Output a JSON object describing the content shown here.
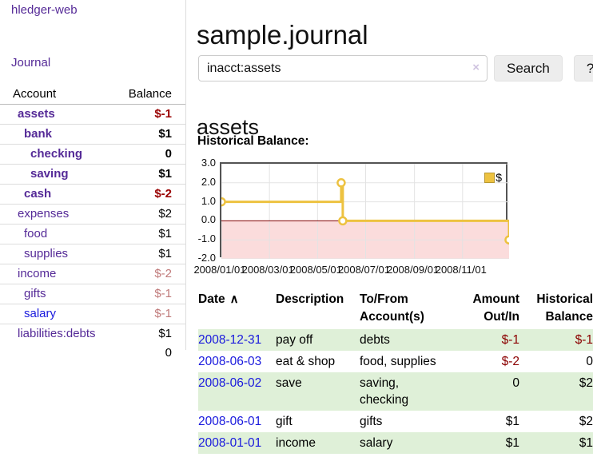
{
  "brand": "hledger-web",
  "nav": {
    "journal": "Journal"
  },
  "sidebar": {
    "headers": {
      "account": "Account",
      "balance": "Balance"
    },
    "rows": [
      {
        "account": "assets",
        "balance": "$-1",
        "depth": 1,
        "bold": true,
        "neg": "strong"
      },
      {
        "account": "bank",
        "balance": "$1",
        "depth": 2,
        "bold": true
      },
      {
        "account": "checking",
        "balance": "0",
        "depth": 3,
        "bold": true
      },
      {
        "account": "saving",
        "balance": "$1",
        "depth": 3,
        "bold": true
      },
      {
        "account": "cash",
        "balance": "$-2",
        "depth": 2,
        "bold": true,
        "neg": "strong"
      },
      {
        "account": "expenses",
        "balance": "$2",
        "depth": 1
      },
      {
        "account": "food",
        "balance": "$1",
        "depth": 2
      },
      {
        "account": "supplies",
        "balance": "$1",
        "depth": 2
      },
      {
        "account": "income",
        "balance": "$-2",
        "depth": 1,
        "neg": "muted"
      },
      {
        "account": "gifts",
        "balance": "$-1",
        "depth": 2,
        "neg": "muted"
      },
      {
        "account": "salary",
        "balance": "$-1",
        "depth": 2,
        "neg": "muted",
        "link": "blue"
      },
      {
        "account": "liabilities:debts",
        "balance": "$1",
        "depth": 1
      }
    ],
    "total": "0"
  },
  "header": {
    "title": "sample.journal"
  },
  "search": {
    "value": "inacct:assets",
    "clear_icon": "×",
    "button": "Search",
    "help_button": "?"
  },
  "account_page": {
    "heading": "assets",
    "chart_label": "Historical Balance:"
  },
  "chart_data": {
    "type": "line",
    "step": true,
    "title": "Historical Balance:",
    "x_unit": "days from 2008-01-01",
    "xlim": [
      0,
      365
    ],
    "ylim": [
      -2,
      3
    ],
    "yticks": [
      3.0,
      2.0,
      1.0,
      0.0,
      -1.0,
      -2.0
    ],
    "xticks": [
      {
        "x": 0,
        "label": "2008/01/01"
      },
      {
        "x": 61,
        "label": "2008/03/01"
      },
      {
        "x": 122,
        "label": "2008/05/01"
      },
      {
        "x": 183,
        "label": "2008/07/01"
      },
      {
        "x": 245,
        "label": "2008/09/01"
      },
      {
        "x": 306,
        "label": "2008/11/01"
      }
    ],
    "series": [
      {
        "name": "$",
        "color": "#edc240",
        "points": [
          {
            "date": "2008-01-01",
            "x": 0,
            "y": 1
          },
          {
            "date": "2008-06-01",
            "x": 152,
            "y": 2
          },
          {
            "date": "2008-06-03",
            "x": 154,
            "y": 0
          },
          {
            "date": "2008-12-31",
            "x": 365,
            "y": -1
          }
        ]
      }
    ],
    "legend": [
      {
        "label": "$",
        "color": "#edc240"
      }
    ],
    "legend_position": "top-right",
    "grid": true,
    "negative_region_color": "#fbdcdc",
    "zero_line_color": "#800000"
  },
  "register": {
    "headers": {
      "date": "Date",
      "sort_icon": "∧",
      "description": "Description",
      "accounts": "To/From\nAccount(s)",
      "amount": "Amount\nOut/In",
      "balance": "Historical\nBalance"
    },
    "rows": [
      {
        "date": "2008-12-31",
        "description": "pay off",
        "accounts": "debts",
        "amount": "$-1",
        "amount_neg": true,
        "balance": "$-1",
        "balance_neg": true
      },
      {
        "date": "2008-06-03",
        "description": "eat & shop",
        "accounts": "food, supplies",
        "amount": "$-2",
        "amount_neg": true,
        "balance": "0"
      },
      {
        "date": "2008-06-02",
        "description": "save",
        "accounts": "saving,\nchecking",
        "amount": "0",
        "balance": "$2"
      },
      {
        "date": "2008-06-01",
        "description": "gift",
        "accounts": "gifts",
        "amount": "$1",
        "balance": "$2"
      },
      {
        "date": "2008-01-01",
        "description": "income",
        "accounts": "salary",
        "amount": "$1",
        "balance": "$1"
      }
    ]
  }
}
